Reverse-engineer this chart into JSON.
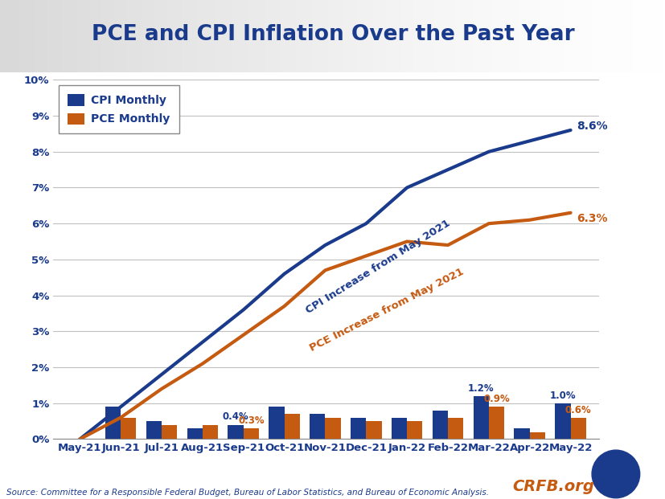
{
  "title": "PCE and CPI Inflation Over the Past Year",
  "title_color": "#1a3a8c",
  "title_fontsize": 19,
  "background_color": "#ffffff",
  "header_color": "#e8e8e8",
  "categories": [
    "May-21",
    "Jun-21",
    "Jul-21",
    "Aug-21",
    "Sep-21",
    "Oct-21",
    "Nov-21",
    "Dec-21",
    "Jan-22",
    "Feb-22",
    "Mar-22",
    "Apr-22",
    "May-22"
  ],
  "cpi_monthly": [
    0.0,
    0.9,
    0.5,
    0.3,
    0.4,
    0.9,
    0.7,
    0.6,
    0.6,
    0.8,
    1.2,
    0.3,
    1.0
  ],
  "pce_monthly": [
    0.0,
    0.6,
    0.4,
    0.4,
    0.3,
    0.7,
    0.6,
    0.5,
    0.5,
    0.6,
    0.9,
    0.2,
    0.6
  ],
  "cpi_cumulative": [
    0.0,
    0.9,
    1.8,
    2.7,
    3.6,
    4.6,
    5.4,
    6.0,
    7.0,
    7.5,
    8.0,
    8.3,
    8.6
  ],
  "pce_cumulative": [
    0.0,
    0.6,
    1.4,
    2.1,
    2.9,
    3.7,
    4.7,
    5.1,
    5.5,
    5.4,
    6.0,
    6.1,
    6.3
  ],
  "cpi_color": "#1a3a8c",
  "pce_color": "#c55a11",
  "bar_width": 0.38,
  "ylim": [
    0,
    10
  ],
  "yticks": [
    0,
    1,
    2,
    3,
    4,
    5,
    6,
    7,
    8,
    9,
    10
  ],
  "source_text": "Source: Committee for a Responsible Federal Budget, Bureau of Labor Statistics, and Bureau of Economic Analysis.",
  "cpi_label": "CPI Monthly",
  "pce_label": "PCE Monthly",
  "cpi_line_label": "CPI Increase from May 2021",
  "pce_line_label": "PCE Increase from May 2021",
  "cpi_end_label": "8.6%",
  "pce_end_label": "6.3%"
}
